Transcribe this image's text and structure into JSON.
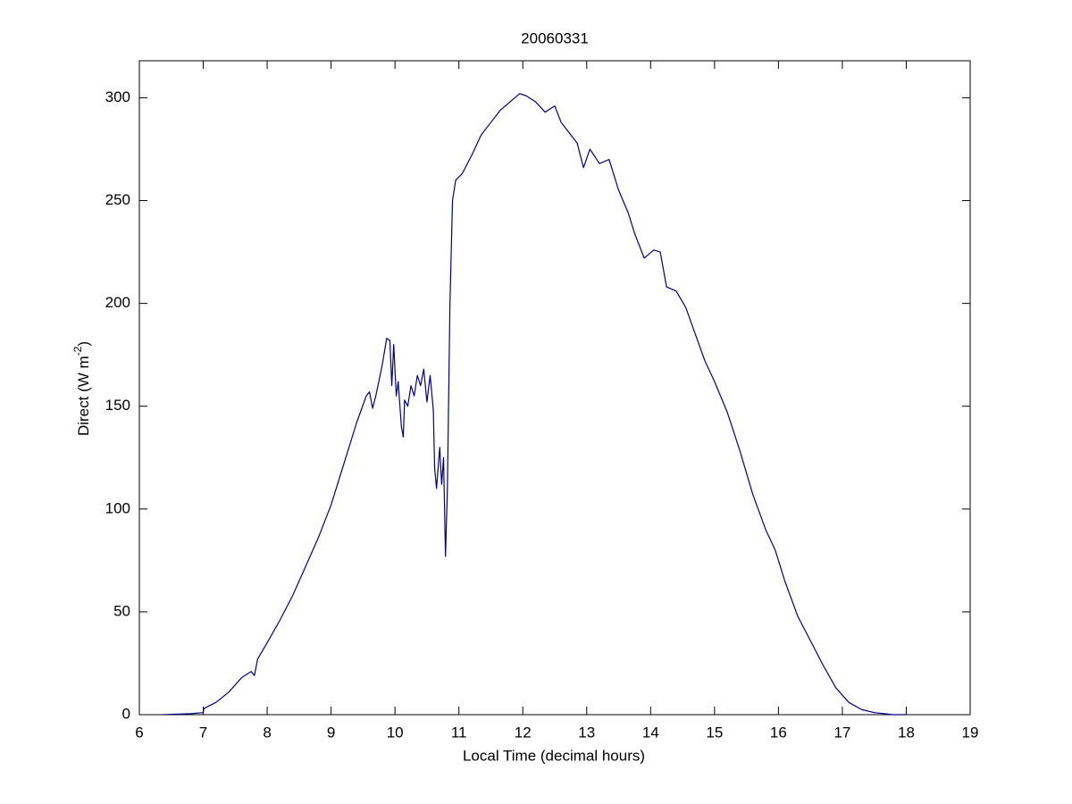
{
  "chart_data": {
    "type": "line",
    "title": "20060331",
    "xlabel": "Local Time (decimal hours)",
    "ylabel": [
      "Direct (W m",
      "-2",
      ")"
    ],
    "xlim": [
      6,
      19
    ],
    "xticks": [
      6,
      7,
      8,
      9,
      10,
      11,
      12,
      13,
      14,
      15,
      16,
      17,
      18,
      19
    ],
    "ylim": [
      0,
      318
    ],
    "yticks": [
      0,
      50,
      100,
      150,
      200,
      250,
      300
    ],
    "grid": false,
    "series": [
      {
        "name": "Direct",
        "color": "#00008b",
        "x": [
          6.37,
          6.8,
          7.0,
          7.01,
          7.2,
          7.4,
          7.6,
          7.75,
          7.8,
          7.85,
          8.0,
          8.2,
          8.4,
          8.6,
          8.8,
          9.0,
          9.2,
          9.4,
          9.55,
          9.6,
          9.65,
          9.7,
          9.8,
          9.87,
          9.92,
          9.95,
          9.98,
          10.02,
          10.05,
          10.1,
          10.13,
          10.15,
          10.2,
          10.25,
          10.3,
          10.35,
          10.4,
          10.45,
          10.5,
          10.55,
          10.6,
          10.62,
          10.65,
          10.7,
          10.73,
          10.76,
          10.79,
          10.82,
          10.86,
          10.9,
          10.95,
          11.05,
          11.2,
          11.35,
          11.5,
          11.65,
          11.8,
          11.95,
          12.05,
          12.2,
          12.35,
          12.5,
          12.6,
          12.75,
          12.85,
          12.95,
          13.05,
          13.2,
          13.35,
          13.5,
          13.65,
          13.75,
          13.9,
          14.05,
          14.15,
          14.25,
          14.4,
          14.55,
          14.7,
          14.85,
          15.0,
          15.2,
          15.4,
          15.6,
          15.8,
          15.95,
          16.1,
          16.3,
          16.5,
          16.7,
          16.9,
          17.1,
          17.3,
          17.5,
          17.8,
          18.0
        ],
        "values": [
          0,
          0.5,
          1,
          3,
          6,
          11,
          18,
          21,
          19,
          27,
          35,
          46,
          58,
          72,
          86,
          102,
          122,
          142,
          155,
          157,
          149,
          155,
          170,
          183,
          182,
          160,
          180,
          155,
          162,
          140,
          135,
          153,
          150,
          160,
          155,
          165,
          160,
          168,
          152,
          165,
          148,
          120,
          110,
          130,
          112,
          125,
          77,
          110,
          200,
          250,
          260,
          263,
          272,
          282,
          288,
          294,
          298,
          302,
          301,
          298,
          293,
          296,
          288,
          282,
          278,
          266,
          275,
          268,
          270,
          255,
          244,
          234,
          222,
          226,
          225,
          208,
          206,
          198,
          185,
          172,
          162,
          147,
          128,
          107,
          90,
          80,
          65,
          48,
          36,
          24,
          13,
          6,
          2.5,
          1,
          0,
          0
        ]
      }
    ]
  }
}
